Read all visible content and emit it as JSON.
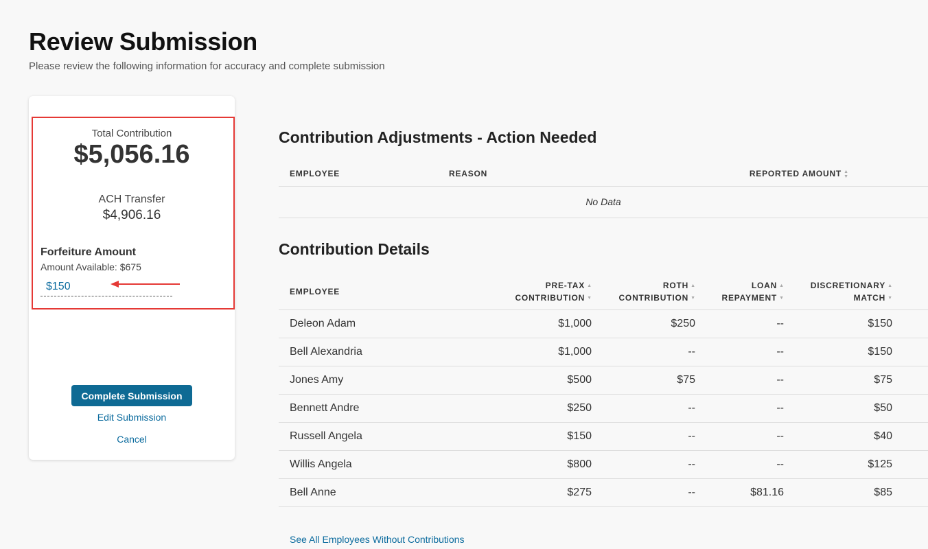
{
  "header": {
    "title": "Review Submission",
    "subtitle": "Please review the following information for accuracy and complete submission"
  },
  "summary": {
    "total_label": "Total Contribution",
    "total_amount": "$5,056.16",
    "ach_label": "ACH Transfer",
    "ach_amount": "$4,906.16",
    "forfeiture_label": "Forfeiture Amount",
    "forfeiture_available": "Amount Available: $675",
    "forfeiture_value": "$150",
    "complete_button": "Complete Submission",
    "edit_link": "Edit Submission",
    "cancel_link": "Cancel"
  },
  "adjustments": {
    "title": "Contribution Adjustments - Action Needed",
    "columns": {
      "employee": "EMPLOYEE",
      "reason": "REASON",
      "reported_amount": "REPORTED AMOUNT"
    },
    "empty_text": "No Data"
  },
  "details": {
    "title": "Contribution Details",
    "columns": {
      "employee": "EMPLOYEE",
      "pretax_1": "PRE-TAX",
      "pretax_2": "CONTRIBUTION",
      "roth_1": "ROTH",
      "roth_2": "CONTRIBUTION",
      "loan_1": "LOAN",
      "loan_2": "REPAYMENT",
      "disc_1": "DISCRETIONARY",
      "disc_2": "MATCH"
    },
    "rows": [
      {
        "employee": "Deleon Adam",
        "pretax": "$1,000",
        "roth": "$250",
        "loan": "--",
        "disc": "$150"
      },
      {
        "employee": "Bell Alexandria",
        "pretax": "$1,000",
        "roth": "--",
        "loan": "--",
        "disc": "$150"
      },
      {
        "employee": "Jones Amy",
        "pretax": "$500",
        "roth": "$75",
        "loan": "--",
        "disc": "$75"
      },
      {
        "employee": "Bennett Andre",
        "pretax": "$250",
        "roth": "--",
        "loan": "--",
        "disc": "$50"
      },
      {
        "employee": "Russell Angela",
        "pretax": "$150",
        "roth": "--",
        "loan": "--",
        "disc": "$40"
      },
      {
        "employee": "Willis Angela",
        "pretax": "$800",
        "roth": "--",
        "loan": "--",
        "disc": "$125"
      },
      {
        "employee": "Bell Anne",
        "pretax": "$275",
        "roth": "--",
        "loan": "$81.16",
        "disc": "$85"
      }
    ],
    "see_all_link": "See All Employees Without Contributions"
  },
  "colors": {
    "accent": "#0e6a94",
    "link": "#0b6b9e",
    "highlight": "#e53935"
  }
}
